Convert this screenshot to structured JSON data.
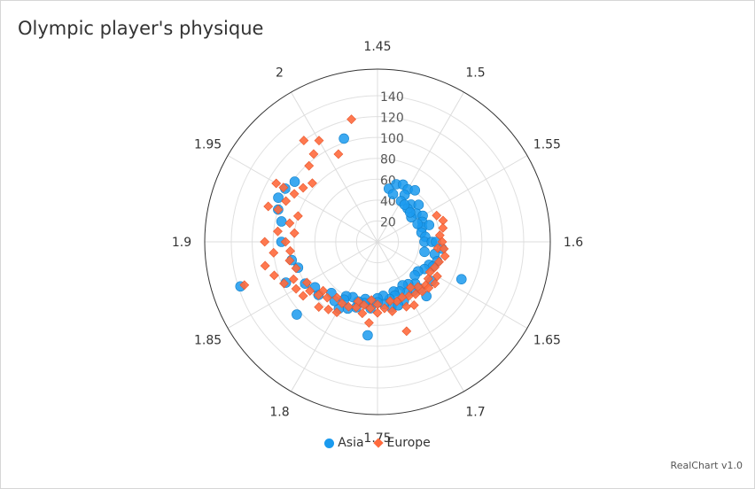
{
  "chart_data": {
    "type": "scatter",
    "polar": true,
    "title": "Olympic player's physique",
    "credits": "RealChart v1.0",
    "angular_axis": {
      "ticks": [
        "1.45",
        "1.5",
        "1.55",
        "1.6",
        "1.65",
        "1.7",
        "1.75",
        "1.8",
        "1.85",
        "1.9",
        "1.95",
        "2"
      ],
      "range": [
        1.45,
        2.05
      ]
    },
    "radial_axis": {
      "ticks": [
        "20",
        "40",
        "60",
        "80",
        "100",
        "120",
        "140"
      ],
      "range": [
        0,
        140
      ]
    },
    "legend_position": "bottom",
    "grid": true,
    "series": [
      {
        "name": "Asia",
        "color": "#1a9aee",
        "marker": "circle",
        "points": [
          [
            1.48,
            58
          ],
          [
            1.49,
            60
          ],
          [
            1.5,
            58
          ],
          [
            1.51,
            61
          ],
          [
            1.47,
            52
          ],
          [
            1.48,
            48
          ],
          [
            1.5,
            52
          ],
          [
            1.52,
            48
          ],
          [
            1.53,
            53
          ],
          [
            1.54,
            46
          ],
          [
            1.55,
            50
          ],
          [
            1.56,
            47
          ],
          [
            1.57,
            45
          ],
          [
            1.52,
            43
          ],
          [
            1.54,
            40
          ],
          [
            1.5,
            45
          ],
          [
            1.51,
            44
          ],
          [
            1.53,
            42
          ],
          [
            1.56,
            42
          ],
          [
            1.58,
            43
          ],
          [
            1.57,
            52
          ],
          [
            1.59,
            46
          ],
          [
            1.6,
            45
          ],
          [
            1.6,
            52
          ],
          [
            1.6,
            56
          ],
          [
            1.61,
            62
          ],
          [
            1.62,
            46
          ],
          [
            1.62,
            56
          ],
          [
            1.63,
            60
          ],
          [
            1.64,
            54
          ],
          [
            1.64,
            58
          ],
          [
            1.65,
            52
          ],
          [
            1.66,
            48
          ],
          [
            1.64,
            88
          ],
          [
            1.66,
            64
          ],
          [
            1.67,
            48
          ],
          [
            1.68,
            54
          ],
          [
            1.68,
            60
          ],
          [
            1.69,
            50
          ],
          [
            1.69,
            58
          ],
          [
            1.7,
            48
          ],
          [
            1.7,
            56
          ],
          [
            1.71,
            52
          ],
          [
            1.71,
            62
          ],
          [
            1.72,
            50
          ],
          [
            1.72,
            54
          ],
          [
            1.73,
            56
          ],
          [
            1.73,
            64
          ],
          [
            1.74,
            52
          ],
          [
            1.74,
            60
          ],
          [
            1.75,
            54
          ],
          [
            1.75,
            58
          ],
          [
            1.76,
            58
          ],
          [
            1.76,
            64
          ],
          [
            1.76,
            90
          ],
          [
            1.77,
            56
          ],
          [
            1.77,
            60
          ],
          [
            1.78,
            66
          ],
          [
            1.78,
            60
          ],
          [
            1.79,
            58
          ],
          [
            1.79,
            70
          ],
          [
            1.8,
            60
          ],
          [
            1.8,
            64
          ],
          [
            1.8,
            74
          ],
          [
            1.81,
            70
          ],
          [
            1.82,
            66
          ],
          [
            1.83,
            104
          ],
          [
            1.83,
            76
          ],
          [
            1.84,
            74
          ],
          [
            1.85,
            80
          ],
          [
            1.86,
            96
          ],
          [
            1.87,
            80
          ],
          [
            1.87,
            138
          ],
          [
            1.88,
            84
          ],
          [
            1.9,
            92
          ],
          [
            1.92,
            94
          ],
          [
            1.93,
            100
          ],
          [
            1.94,
            104
          ],
          [
            1.95,
            102
          ],
          [
            1.96,
            98
          ],
          [
            2.02,
            104
          ],
          [
            1.68,
            70
          ],
          [
            1.72,
            64
          ]
        ]
      },
      {
        "name": "Europe",
        "color": "#ff6a3d",
        "marker": "diamond",
        "points": [
          [
            1.56,
            62
          ],
          [
            1.57,
            66
          ],
          [
            1.58,
            64
          ],
          [
            1.59,
            60
          ],
          [
            1.6,
            62
          ],
          [
            1.61,
            58
          ],
          [
            1.61,
            64
          ],
          [
            1.62,
            66
          ],
          [
            1.63,
            62
          ],
          [
            1.64,
            60
          ],
          [
            1.65,
            58
          ],
          [
            1.65,
            66
          ],
          [
            1.66,
            60
          ],
          [
            1.66,
            68
          ],
          [
            1.67,
            62
          ],
          [
            1.67,
            66
          ],
          [
            1.68,
            58
          ],
          [
            1.68,
            64
          ],
          [
            1.69,
            54
          ],
          [
            1.69,
            62
          ],
          [
            1.7,
            60
          ],
          [
            1.7,
            70
          ],
          [
            1.71,
            58
          ],
          [
            1.71,
            68
          ],
          [
            1.72,
            60
          ],
          [
            1.72,
            90
          ],
          [
            1.73,
            58
          ],
          [
            1.73,
            68
          ],
          [
            1.74,
            64
          ],
          [
            1.75,
            60
          ],
          [
            1.75,
            68
          ],
          [
            1.76,
            56
          ],
          [
            1.76,
            64
          ],
          [
            1.76,
            78
          ],
          [
            1.77,
            62
          ],
          [
            1.77,
            70
          ],
          [
            1.78,
            60
          ],
          [
            1.78,
            66
          ],
          [
            1.79,
            68
          ],
          [
            1.8,
            68
          ],
          [
            1.8,
            78
          ],
          [
            1.81,
            66
          ],
          [
            1.81,
            80
          ],
          [
            1.82,
            72
          ],
          [
            1.82,
            84
          ],
          [
            1.83,
            70
          ],
          [
            1.83,
            76
          ],
          [
            1.84,
            80
          ],
          [
            1.84,
            88
          ],
          [
            1.85,
            78
          ],
          [
            1.85,
            90
          ],
          [
            1.86,
            88
          ],
          [
            1.86,
            98
          ],
          [
            1.87,
            82
          ],
          [
            1.87,
            104
          ],
          [
            1.87,
            134
          ],
          [
            1.88,
            86
          ],
          [
            1.88,
            110
          ],
          [
            1.89,
            84
          ],
          [
            1.89,
            100
          ],
          [
            1.9,
            88
          ],
          [
            1.9,
            108
          ],
          [
            1.91,
            80
          ],
          [
            1.91,
            96
          ],
          [
            1.92,
            86
          ],
          [
            1.93,
            100
          ],
          [
            1.93,
            110
          ],
          [
            1.94,
            96
          ],
          [
            1.95,
            92
          ],
          [
            1.95,
            104
          ],
          [
            1.95,
            112
          ],
          [
            1.96,
            88
          ],
          [
            1.97,
            84
          ],
          [
            1.98,
            98
          ],
          [
            1.99,
            104
          ],
          [
            1.99,
            120
          ],
          [
            2.0,
            112
          ],
          [
            2.01,
            92
          ],
          [
            2.03,
            120
          ],
          [
            1.93,
            80
          ]
        ]
      }
    ]
  }
}
